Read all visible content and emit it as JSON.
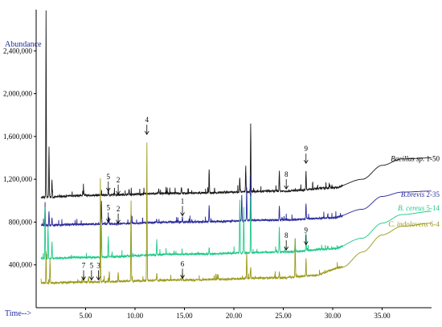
{
  "chart_data": {
    "type": "line",
    "ylabel": "Abundance",
    "xlabel": "Time-->",
    "xlim": [
      0,
      40
    ],
    "ylim": [
      0,
      2800000
    ],
    "xticks": [
      5,
      10,
      15,
      20,
      25,
      30,
      35
    ],
    "xtick_labels": [
      "5.00",
      "10.00",
      "15.00",
      "20.00",
      "25.00",
      "30.00",
      "35.00"
    ],
    "yticks": [
      400000,
      800000,
      1200000,
      1600000,
      2000000,
      2400000
    ],
    "ytick_labels": [
      "400,000",
      "800,000",
      "1,200,000",
      "1,600,000",
      "2,000,000",
      "2,400,000"
    ],
    "grid": false,
    "legend_placement": "right, at the end of each trace",
    "series": [
      {
        "name": "Bacillus sp. 1-50",
        "name_parts": [
          "Bacillus sp.",
          " 1-50"
        ],
        "color": "#1a1a1a",
        "baseline": [
          [
            0.5,
            1030000
          ],
          [
            5,
            1050000
          ],
          [
            15,
            1070000
          ],
          [
            25,
            1090000
          ],
          [
            30,
            1120000
          ],
          [
            33,
            1200000
          ],
          [
            35,
            1330000
          ],
          [
            37,
            1390000
          ],
          [
            40,
            1400000
          ]
        ],
        "peaks": [
          [
            1.0,
            2780000
          ],
          [
            1.3,
            1500000
          ],
          [
            1.6,
            1200000
          ],
          [
            4.8,
            1110000
          ],
          [
            7.3,
            1120000
          ],
          [
            9.4,
            1100000
          ],
          [
            12.4,
            1110000
          ],
          [
            14.7,
            1130000
          ],
          [
            17.5,
            1300000
          ],
          [
            20.6,
            1220000
          ],
          [
            21.2,
            1330000
          ],
          [
            21.7,
            1720000
          ],
          [
            24.6,
            1280000
          ],
          [
            27.3,
            1280000
          ],
          [
            29.7,
            1150000
          ]
        ]
      },
      {
        "name": "B.brevis 2-35",
        "name_parts": [
          "B.brevis",
          " 2-35"
        ],
        "color": "#2a2a9a",
        "baseline": [
          [
            0.5,
            770000
          ],
          [
            5,
            780000
          ],
          [
            15,
            800000
          ],
          [
            25,
            820000
          ],
          [
            30,
            840000
          ],
          [
            33,
            920000
          ],
          [
            35,
            1040000
          ],
          [
            37,
            1080000
          ],
          [
            40,
            1090000
          ]
        ],
        "peaks": [
          [
            0.9,
            960000
          ],
          [
            1.3,
            900000
          ],
          [
            1.6,
            850000
          ],
          [
            6.6,
            1000000
          ],
          [
            7.3,
            850000
          ],
          [
            9.6,
            840000
          ],
          [
            12.2,
            830000
          ],
          [
            14.8,
            850000
          ],
          [
            17.5,
            960000
          ],
          [
            20.8,
            1060000
          ],
          [
            21.3,
            1120000
          ],
          [
            21.7,
            1240000
          ],
          [
            24.6,
            960000
          ],
          [
            27.3,
            980000
          ],
          [
            29.5,
            880000
          ]
        ]
      },
      {
        "name": "B. cereus 5-14",
        "name_parts": [
          "B. cereus",
          " 5-14"
        ],
        "color": "#1dc988",
        "baseline": [
          [
            0.5,
            460000
          ],
          [
            5,
            470000
          ],
          [
            15,
            500000
          ],
          [
            25,
            520000
          ],
          [
            30,
            550000
          ],
          [
            33,
            650000
          ],
          [
            35,
            790000
          ],
          [
            37,
            870000
          ],
          [
            40,
            900000
          ]
        ],
        "peaks": [
          [
            0.9,
            950000
          ],
          [
            1.2,
            760000
          ],
          [
            1.6,
            620000
          ],
          [
            6.6,
            780000
          ],
          [
            7.3,
            660000
          ],
          [
            9.6,
            760000
          ],
          [
            12.2,
            640000
          ],
          [
            17.5,
            560000
          ],
          [
            20.6,
            1000000
          ],
          [
            21.0,
            940000
          ],
          [
            21.7,
            1050000
          ],
          [
            24.6,
            760000
          ],
          [
            26.2,
            640000
          ],
          [
            27.3,
            700000
          ],
          [
            29.5,
            580000
          ]
        ]
      },
      {
        "name": "C. indolovens 6-4",
        "name_parts": [
          "C. indolovens",
          " 6-4"
        ],
        "color": "#9a9a1a",
        "baseline": [
          [
            0.5,
            230000
          ],
          [
            5,
            240000
          ],
          [
            15,
            260000
          ],
          [
            25,
            280000
          ],
          [
            28,
            300000
          ],
          [
            31,
            380000
          ],
          [
            33,
            520000
          ],
          [
            35,
            680000
          ],
          [
            37,
            760000
          ],
          [
            40,
            790000
          ]
        ],
        "peaks": [
          [
            1.0,
            520000
          ],
          [
            1.4,
            450000
          ],
          [
            4.8,
            300000
          ],
          [
            5.3,
            290000
          ],
          [
            6.5,
            1180000
          ],
          [
            7.4,
            340000
          ],
          [
            8.3,
            330000
          ],
          [
            9.6,
            1000000
          ],
          [
            11.2,
            1540000
          ],
          [
            12.2,
            330000
          ],
          [
            14.8,
            320000
          ],
          [
            18.4,
            310000
          ],
          [
            21.3,
            520000
          ],
          [
            21.7,
            380000
          ],
          [
            24.6,
            330000
          ],
          [
            26.2,
            640000
          ],
          [
            27.3,
            460000
          ]
        ]
      }
    ],
    "annotations": [
      {
        "label": "5",
        "x": 7.3,
        "y": 1090000
      },
      {
        "label": "2",
        "x": 8.3,
        "y": 1060000
      },
      {
        "label": "8",
        "x": 25.3,
        "y": 1110000
      },
      {
        "label": "9",
        "x": 27.3,
        "y": 1350000
      },
      {
        "label": "5",
        "x": 7.3,
        "y": 800000
      },
      {
        "label": "2",
        "x": 8.3,
        "y": 790000
      },
      {
        "label": "1",
        "x": 14.8,
        "y": 860000
      },
      {
        "label": "4",
        "x": 11.2,
        "y": 1620000
      },
      {
        "label": "8",
        "x": 25.3,
        "y": 540000
      },
      {
        "label": "9",
        "x": 27.3,
        "y": 590000
      },
      {
        "label": "7",
        "x": 4.8,
        "y": 260000
      },
      {
        "label": "5",
        "x": 5.6,
        "y": 260000
      },
      {
        "label": "3",
        "x": 6.3,
        "y": 260000
      },
      {
        "label": "6",
        "x": 14.8,
        "y": 275000
      }
    ]
  }
}
